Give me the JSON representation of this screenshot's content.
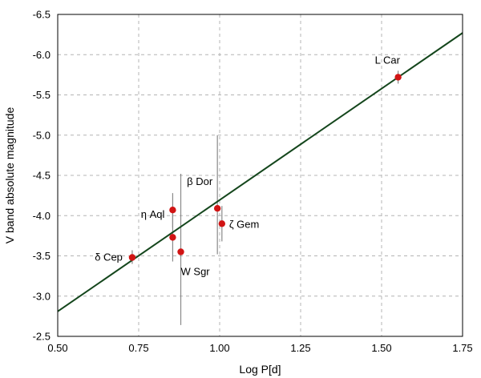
{
  "chart_data": {
    "type": "scatter",
    "title": "",
    "xlabel": "Log P[d]",
    "ylabel": "V band absolute magnitude",
    "xlim": [
      0.5,
      1.75
    ],
    "ylim": [
      -2.5,
      -6.5
    ],
    "y_inverted": true,
    "grid": true,
    "x_ticks": [
      "0.50",
      "0.75",
      "1.00",
      "1.25",
      "1.50",
      "1.75"
    ],
    "y_ticks": [
      "-6.5",
      "-6.0",
      "-5.5",
      "-5.0",
      "-4.5",
      "-4.0",
      "-3.5",
      "-3.0",
      "-2.5"
    ],
    "colors": {
      "points": "#d11414",
      "fit_line": "#14461c",
      "error_bars": "#8a8a8a",
      "grid": "#b4b4b4"
    },
    "points": [
      {
        "label": "δ Cep",
        "x": 0.73,
        "y": -3.48,
        "err_low": -3.4,
        "err_high": -3.57
      },
      {
        "label": "η Aql",
        "x": 0.855,
        "y": -4.07,
        "err_low": -3.85,
        "err_high": -4.28
      },
      {
        "label": "",
        "x": 0.855,
        "y": -3.73,
        "err_low": -3.43,
        "err_high": -4.03
      },
      {
        "label": "W Sgr",
        "x": 0.88,
        "y": -3.55,
        "err_low": -2.64,
        "err_high": -4.52
      },
      {
        "label": "β Dor",
        "x": 0.993,
        "y": -4.09,
        "err_low": -3.52,
        "err_high": -5.0
      },
      {
        "label": "ζ  Gem",
        "x": 1.007,
        "y": -3.9,
        "err_low": -3.68,
        "err_high": -4.12
      },
      {
        "label": "L Car",
        "x": 1.551,
        "y": -5.72,
        "err_low": -5.64,
        "err_high": -5.8
      }
    ],
    "fit_line": {
      "x": [
        0.5,
        1.75
      ],
      "y": [
        -2.81,
        -6.27
      ]
    }
  }
}
